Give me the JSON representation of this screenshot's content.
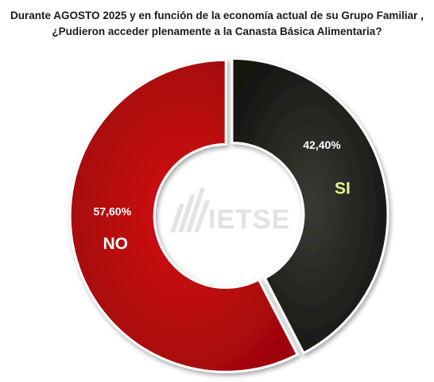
{
  "chart_data": {
    "type": "pie",
    "title_line1": "Durante AGOSTO 2025 y en función de la economía actual de su Grupo Familiar ,",
    "title_line2": "¿Pudieron acceder plenamente a la Canasta Básica Alimentaria?",
    "slices": [
      {
        "label": "SI",
        "value": 42.4,
        "value_label": "42,40%",
        "color": "#1f1f1b",
        "label_color": "#e6f28a"
      },
      {
        "label": "NO",
        "value": 57.6,
        "value_label": "57,60%",
        "color": "#c4070c",
        "label_color": "#ffffff"
      }
    ],
    "center_logo_text": "IETSE",
    "hole": "donut"
  }
}
